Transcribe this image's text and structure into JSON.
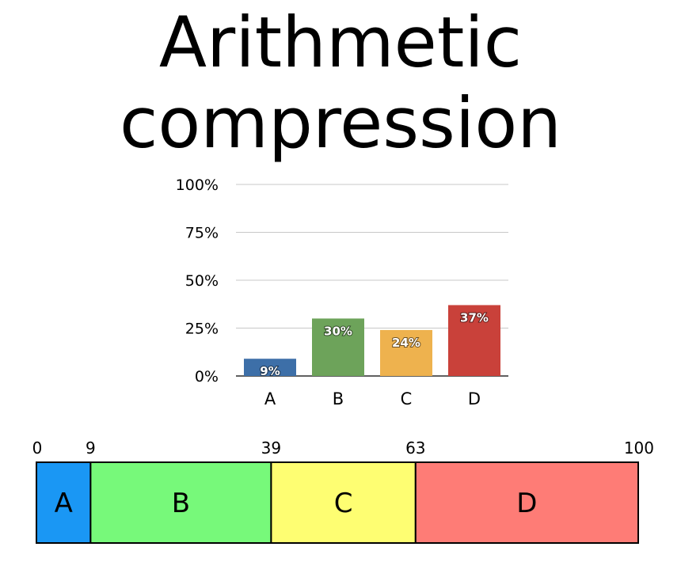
{
  "title": {
    "line1": "Arithmetic",
    "line2": "compression"
  },
  "chart_data": [
    {
      "type": "bar",
      "categories": [
        "A",
        "B",
        "C",
        "D"
      ],
      "values": [
        9,
        30,
        24,
        37
      ],
      "data_labels": [
        "9%",
        "30%",
        "24%",
        "37%"
      ],
      "colors": [
        "#3d6fa8",
        "#6da35a",
        "#eeb24e",
        "#c9413a"
      ],
      "yticks": [
        "0%",
        "25%",
        "50%",
        "75%",
        "100%"
      ],
      "ylim": [
        0,
        100
      ],
      "grid": true
    },
    {
      "type": "interval",
      "segments": [
        {
          "label": "A",
          "start": 0,
          "end": 9,
          "color": "#1a97f4"
        },
        {
          "label": "B",
          "start": 9,
          "end": 39,
          "color": "#77f97a"
        },
        {
          "label": "C",
          "start": 39,
          "end": 63,
          "color": "#fefe72"
        },
        {
          "label": "D",
          "start": 63,
          "end": 100,
          "color": "#fe7c76"
        }
      ],
      "boundary_labels": [
        "0",
        "9",
        "39",
        "63",
        "100"
      ],
      "range": [
        0,
        100
      ]
    }
  ]
}
